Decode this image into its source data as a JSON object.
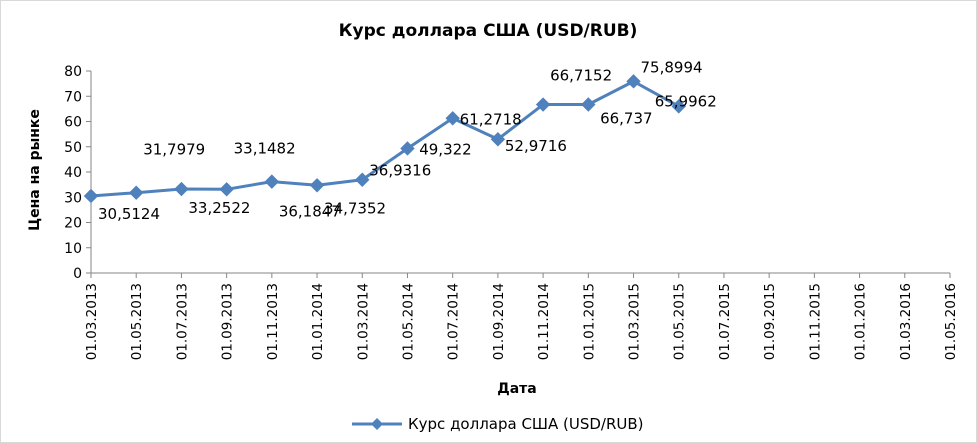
{
  "chart_data": {
    "type": "line",
    "title": "Курс доллара США (USD/RUB)",
    "xlabel": "Дата",
    "ylabel": "Цена на рынке",
    "ylim": [
      0,
      80
    ],
    "yticks": [
      "0",
      "10",
      "20",
      "30",
      "40",
      "50",
      "60",
      "70",
      "80"
    ],
    "categories": [
      "01.03.2013",
      "01.05.2013",
      "01.07.2013",
      "01.09.2013",
      "01.11.2013",
      "01.01.2014",
      "01.03.2014",
      "01.05.2014",
      "01.07.2014",
      "01.09.2014",
      "01.11.2014",
      "01.01.2015",
      "01.03.2015",
      "01.05.2015",
      "01.07.2015",
      "01.09.2015",
      "01.11.2015",
      "01.01.2016",
      "01.03.2016",
      "01.05.2016"
    ],
    "grid": false,
    "legend_position": "bottom",
    "series": [
      {
        "name": "Курс доллара США (USD/RUB)",
        "color": "#4f81bd",
        "marker": "diamond",
        "points": [
          {
            "x": "01.03.2013",
            "y": 30.5124,
            "label": "30,5124"
          },
          {
            "x": "01.05.2013",
            "y": 31.7979,
            "label": "31,7979"
          },
          {
            "x": "01.07.2013",
            "y": 33.2522,
            "label": "33,2522"
          },
          {
            "x": "01.09.2013",
            "y": 33.1482,
            "label": "33,1482"
          },
          {
            "x": "01.11.2013",
            "y": 36.1847,
            "label": "36,1847"
          },
          {
            "x": "01.01.2014",
            "y": 34.7352,
            "label": "34,7352"
          },
          {
            "x": "01.03.2014",
            "y": 36.9316,
            "label": "36,9316"
          },
          {
            "x": "01.05.2014",
            "y": 49.322,
            "label": "49,322"
          },
          {
            "x": "01.07.2014",
            "y": 61.2718,
            "label": "61,2718"
          },
          {
            "x": "01.09.2014",
            "y": 52.9716,
            "label": "52,9716"
          },
          {
            "x": "01.11.2014",
            "y": 66.7152,
            "label": "66,7152"
          },
          {
            "x": "01.01.2015",
            "y": 66.737,
            "label": "66,737"
          },
          {
            "x": "01.03.2015",
            "y": 75.8994,
            "label": "75,8994"
          },
          {
            "x": "01.05.2015",
            "y": 65.9962,
            "label": "65,9962"
          }
        ]
      }
    ]
  }
}
